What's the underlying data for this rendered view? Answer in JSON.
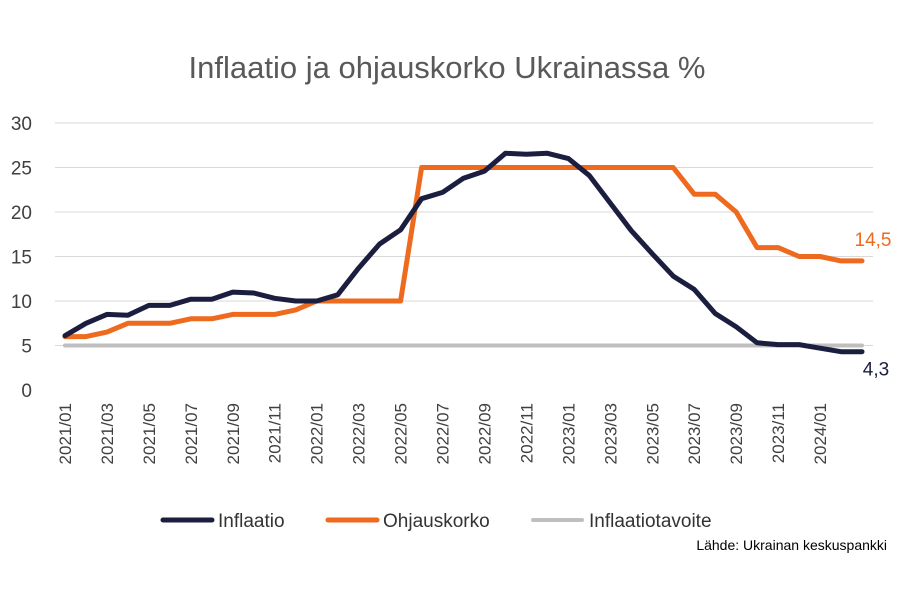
{
  "chart_data": {
    "type": "line",
    "title": "Inflaatio ja ohjauskorko Ukrainassa %",
    "xlabel": "",
    "ylabel": "",
    "ylim": [
      0,
      30
    ],
    "yticks": [
      "0",
      "5",
      "10",
      "15",
      "20",
      "25",
      "30"
    ],
    "grid": true,
    "legend_position": "bottom",
    "x": [
      "2021/01",
      "2021/02",
      "2021/03",
      "2021/04",
      "2021/05",
      "2021/06",
      "2021/07",
      "2021/08",
      "2021/09",
      "2021/10",
      "2021/11",
      "2021/12",
      "2022/01",
      "2022/02",
      "2022/03",
      "2022/04",
      "2022/05",
      "2022/06",
      "2022/07",
      "2022/08",
      "2022/09",
      "2022/10",
      "2022/11",
      "2022/12",
      "2023/01",
      "2023/02",
      "2023/03",
      "2023/04",
      "2023/05",
      "2023/06",
      "2023/07",
      "2023/08",
      "2023/09",
      "2023/10",
      "2023/11",
      "2023/12",
      "2024/01",
      "2024/02",
      "2024/03"
    ],
    "xticks": [
      "2021/01",
      "2021/03",
      "2021/05",
      "2021/07",
      "2021/09",
      "2021/11",
      "2022/01",
      "2022/03",
      "2022/05",
      "2022/07",
      "2022/09",
      "2022/11",
      "2023/01",
      "2023/03",
      "2023/05",
      "2023/07",
      "2023/09",
      "2023/11",
      "2024/01"
    ],
    "series": [
      {
        "name": "Inflaatio",
        "color": "#1b1e3f",
        "values": [
          6.1,
          7.5,
          8.5,
          8.4,
          9.5,
          9.5,
          10.2,
          10.2,
          11.0,
          10.9,
          10.3,
          10.0,
          10.0,
          10.7,
          13.7,
          16.4,
          18.0,
          21.5,
          22.2,
          23.8,
          24.6,
          26.6,
          26.5,
          26.6,
          26.0,
          24.1,
          21.0,
          17.9,
          15.3,
          12.8,
          11.3,
          8.6,
          7.1,
          5.3,
          5.1,
          5.1,
          4.7,
          4.3,
          4.3
        ],
        "end_label": "4,3"
      },
      {
        "name": "Ohjauskorko",
        "color": "#ee6a1e",
        "values": [
          6.0,
          6.0,
          6.5,
          7.5,
          7.5,
          7.5,
          8.0,
          8.0,
          8.5,
          8.5,
          8.5,
          9.0,
          10.0,
          10.0,
          10.0,
          10.0,
          10.0,
          25.0,
          25.0,
          25.0,
          25.0,
          25.0,
          25.0,
          25.0,
          25.0,
          25.0,
          25.0,
          25.0,
          25.0,
          25.0,
          22.0,
          22.0,
          20.0,
          16.0,
          16.0,
          15.0,
          15.0,
          14.5,
          14.5
        ],
        "end_label": "14,5"
      },
      {
        "name": "Inflaatiotavoite",
        "color": "#bfbfbf",
        "values": [
          5,
          5,
          5,
          5,
          5,
          5,
          5,
          5,
          5,
          5,
          5,
          5,
          5,
          5,
          5,
          5,
          5,
          5,
          5,
          5,
          5,
          5,
          5,
          5,
          5,
          5,
          5,
          5,
          5,
          5,
          5,
          5,
          5,
          5,
          5,
          5,
          5,
          5,
          5
        ]
      }
    ],
    "source": "Lähde: Ukrainan keskuspankki"
  }
}
